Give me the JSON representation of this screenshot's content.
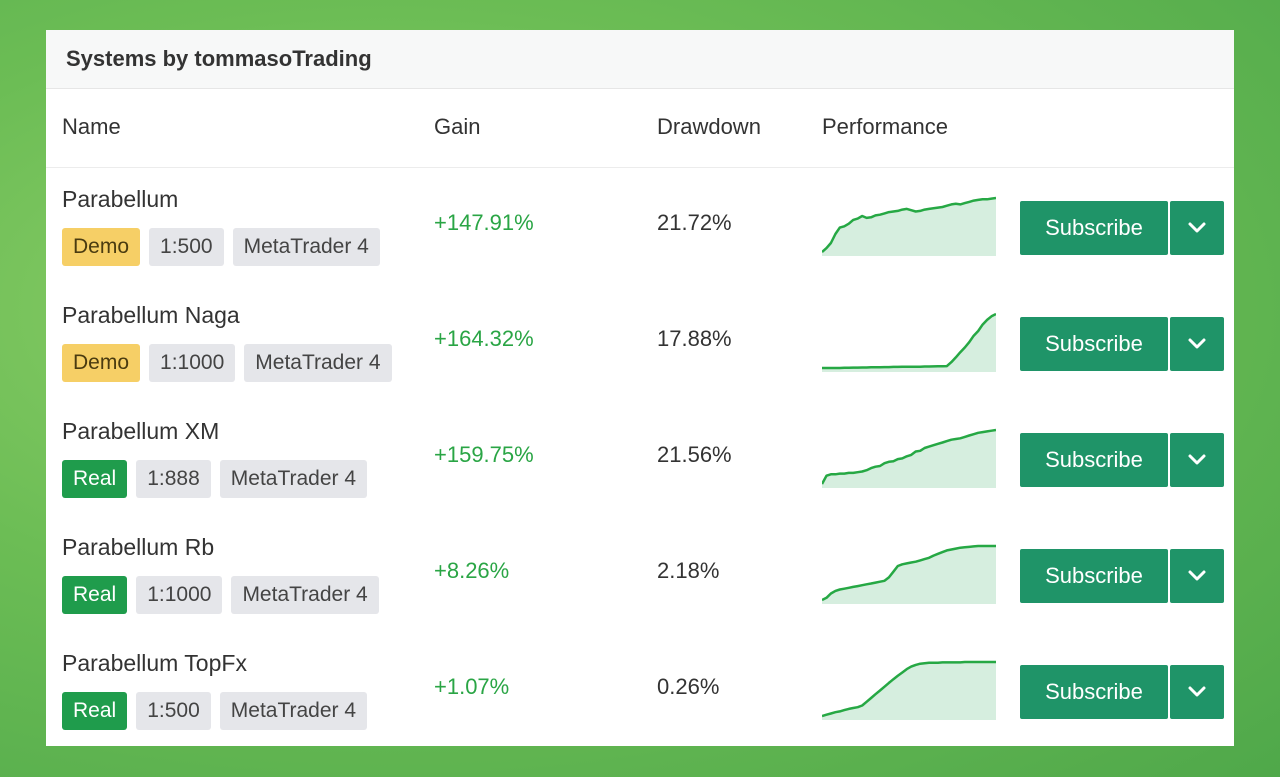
{
  "panel": {
    "title": "Systems by tommasoTrading"
  },
  "columns": {
    "name": "Name",
    "gain": "Gain",
    "drawdown": "Drawdown",
    "performance": "Performance"
  },
  "colors": {
    "accent": "#1f9468",
    "gain": "#2aa545",
    "demo": "#f6cf66",
    "real": "#1f9c4c"
  },
  "icons": {
    "dropdown": "chevron-down-icon"
  },
  "rows": [
    {
      "name": "Parabellum",
      "type": "Demo",
      "leverage": "1:500",
      "platform": "MetaTrader 4",
      "gain": "+147.91%",
      "drawdown": "21.72%",
      "subscribe": "Subscribe",
      "performance": [
        0,
        6,
        14,
        28,
        38,
        40,
        44,
        50,
        52,
        56,
        53,
        54,
        57,
        58,
        60,
        62,
        63,
        64,
        66,
        67,
        65,
        63,
        64,
        66,
        67,
        68,
        69,
        70,
        72,
        74,
        75,
        74,
        76,
        78,
        80,
        81,
        82,
        82,
        83,
        84
      ]
    },
    {
      "name": "Parabellum Naga",
      "type": "Demo",
      "leverage": "1:1000",
      "platform": "MetaTrader 4",
      "gain": "+164.32%",
      "drawdown": "17.88%",
      "subscribe": "Subscribe",
      "performance": [
        0,
        0,
        0,
        0,
        0,
        0.3,
        0.3,
        0.6,
        0.6,
        0.9,
        0.9,
        1.2,
        1.2,
        1.2,
        1.5,
        1.5,
        1.8,
        1.8,
        2,
        2,
        2,
        2,
        2.2,
        2.5,
        2.5,
        2.8,
        3,
        3,
        3.3,
        10,
        18,
        27,
        35,
        44,
        55,
        63,
        74,
        82,
        88,
        92
      ]
    },
    {
      "name": "Parabellum XM",
      "type": "Real",
      "leverage": "1:888",
      "platform": "MetaTrader 4",
      "gain": "+159.75%",
      "drawdown": "21.56%",
      "subscribe": "Subscribe",
      "performance": [
        0,
        12,
        14,
        14,
        15,
        15,
        16,
        16,
        17,
        18,
        20,
        23,
        25,
        26,
        30,
        32,
        33,
        36,
        37,
        40,
        42,
        47,
        48,
        52,
        54,
        56,
        58,
        60,
        62,
        64,
        65,
        66,
        68,
        70,
        72,
        74,
        75,
        76,
        77,
        78
      ]
    },
    {
      "name": "Parabellum Rb",
      "type": "Real",
      "leverage": "1:1000",
      "platform": "MetaTrader 4",
      "gain": "+8.26%",
      "drawdown": "2.18%",
      "subscribe": "Subscribe",
      "performance": [
        0,
        0.5,
        1.5,
        2.1,
        2.4,
        2.6,
        2.8,
        3.0,
        3.2,
        3.4,
        3.6,
        3.8,
        4.0,
        4.2,
        4.4,
        5.2,
        6.5,
        7.8,
        8.2,
        8.4,
        8.6,
        8.8,
        9.1,
        9.4,
        9.7,
        10.2,
        10.6,
        11,
        11.4,
        11.6,
        11.8,
        12,
        12.1,
        12.2,
        12.3,
        12.4,
        12.4,
        12.4,
        12.4,
        12.4
      ]
    },
    {
      "name": "Parabellum TopFx",
      "type": "Real",
      "leverage": "1:500",
      "platform": "MetaTrader 4",
      "gain": "+1.07%",
      "drawdown": "0.26%",
      "subscribe": "Subscribe",
      "performance": [
        0,
        0.3,
        0.6,
        0.9,
        1.1,
        1.4,
        1.7,
        1.9,
        2.1,
        2.5,
        3.4,
        4.3,
        5.2,
        6.1,
        7,
        7.9,
        8.8,
        9.6,
        10.4,
        11.2,
        11.8,
        12.2,
        12.5,
        12.6,
        12.7,
        12.7,
        12.7,
        12.8,
        12.8,
        12.8,
        12.8,
        12.8,
        12.9,
        12.9,
        12.9,
        12.9,
        12.9,
        12.9,
        12.9,
        12.9
      ]
    }
  ]
}
